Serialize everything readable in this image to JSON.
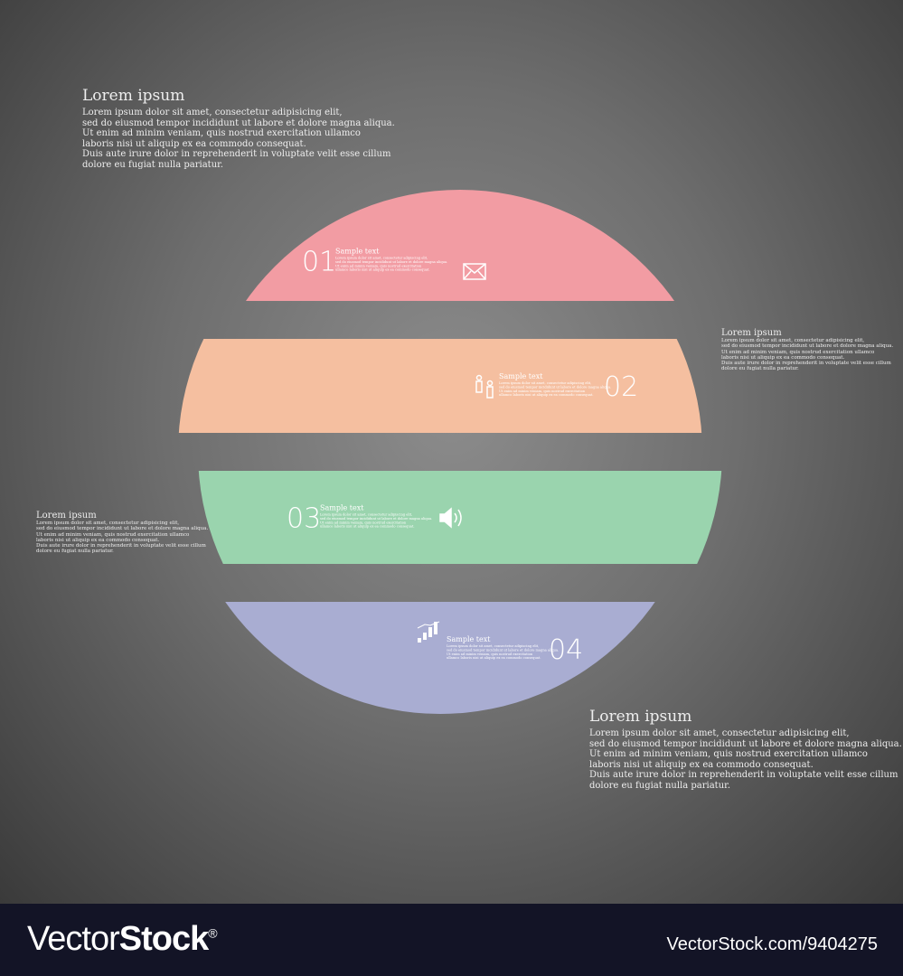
{
  "notes": [
    {
      "title": "Lorem ipsum",
      "body": "Lorem ipsum dolor sit amet, consectetur adipisicing elit,\nsed do eiusmod tempor incididunt ut labore et dolore magna aliqua.\nUt enim ad minim veniam, quis nostrud exercitation ullamco\nlaboris nisi ut aliquip ex ea commodo consequat.\nDuis aute irure dolor in reprehenderit in voluptate velit esse cillum\ndolore eu fugiat nulla pariatur."
    },
    {
      "title": "Lorem ipsum",
      "body": "Lorem ipsum dolor sit amet, consectetur adipisicing elit,\nsed do eiusmod tempor incididunt ut labore et dolore magna aliqua.\nUt enim ad minim veniam, quis nostrud exercitation ullamco\nlaboris nisi ut aliquip ex ea commodo consequat.\nDuis aute irure dolor in reprehenderit in voluptate velit esse cillum\ndolore eu fugiat nulla pariatur."
    },
    {
      "title": "Lorem ipsum",
      "body": "Lorem ipsum dolor sit amet, consectetur adipisicing elit,\nsed do eiusmod tempor incididunt ut labore et dolore magna aliqua.\nUt enim ad minim veniam, quis nostrud exercitation ullamco\nlaboris nisi ut aliquip ex ea commodo consequat.\nDuis aute irure dolor in reprehenderit in voluptate velit esse cillum\ndolore eu fugiat nulla pariatur."
    },
    {
      "title": "Lorem ipsum",
      "body": "Lorem ipsum dolor sit amet, consectetur adipisicing elit,\nsed do eiusmod tempor incididunt ut labore et dolore magna aliqua.\nUt enim ad minim veniam, quis nostrud exercitation ullamco\nlaboris nisi ut aliquip ex ea commodo consequat.\nDuis aute irure dolor in reprehenderit in voluptate velit esse cillum\ndolore eu fugiat nulla pariatur."
    }
  ],
  "segments": [
    {
      "number": "01",
      "title": "Sample text",
      "icon": "envelope-icon",
      "color": "#f29ca3",
      "lines": [
        "Lorem ipsum dolor sit amet, consectetur adipiscing elit,",
        "sed do eiusmod tempor incididunt ut labore et dolore magna aliqua.",
        "Ut enim ad minim veniam, quis nostrud exercitation",
        "ullamco laboris nisi ut aliquip ex ea commodo consequat."
      ]
    },
    {
      "number": "02",
      "title": "Sample text",
      "icon": "people-icon",
      "color": "#f5bfa0",
      "lines": [
        "Lorem ipsum dolor sit amet, consectetur adipiscing elit,",
        "sed do eiusmod tempor incididunt ut labore et dolore magna aliqua.",
        "Ut enim ad minim veniam, quis nostrud exercitation",
        "ullamco laboris nisi ut aliquip ex ea commodo consequat."
      ]
    },
    {
      "number": "03",
      "title": "Sample text",
      "icon": "speaker-icon",
      "color": "#9ad4ae",
      "lines": [
        "Lorem ipsum dolor sit amet, consectetur adipiscing elit,",
        "sed do eiusmod tempor incididunt ut labore et dolore magna aliqua.",
        "Ut enim ad minim veniam, quis nostrud exercitation",
        "ullamco laboris nisi ut aliquip ex ea commodo consequat."
      ]
    },
    {
      "number": "04",
      "title": "Sample text",
      "icon": "bar-chart-icon",
      "color": "#a9add2",
      "lines": [
        "Lorem ipsum dolor sit amet, consectetur adipiscing elit,",
        "sed do eiusmod tempor incididunt ut labore et dolore magna aliqua.",
        "Ut enim ad minim veniam, quis nostrud exercitation",
        "ullamco laboris nisi ut aliquip ex ea commodo consequat."
      ]
    }
  ],
  "footer": {
    "logo": "VectorStock®",
    "url": "VectorStock.com/9404275"
  }
}
